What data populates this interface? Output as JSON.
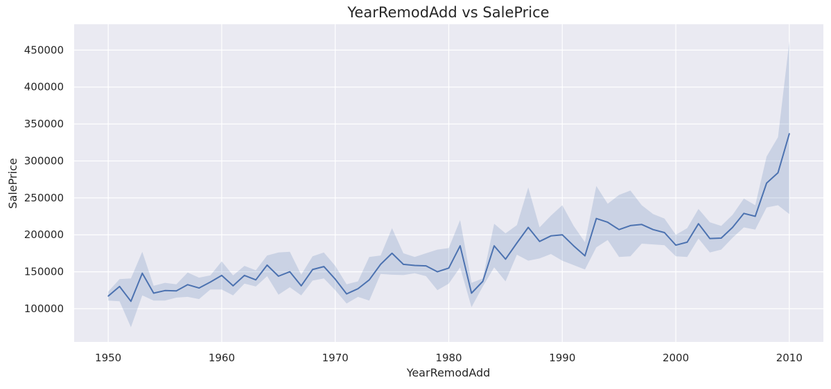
{
  "chart_data": {
    "type": "line",
    "title": "YearRemodAdd vs SalePrice",
    "xlabel": "YearRemodAdd",
    "ylabel": "SalePrice",
    "xlim": [
      1947,
      2013
    ],
    "ylim": [
      55000,
      485000
    ],
    "xticks": [
      1950,
      1960,
      1970,
      1980,
      1990,
      2000,
      2010
    ],
    "yticks": [
      100000,
      150000,
      200000,
      250000,
      300000,
      350000,
      400000,
      450000
    ],
    "grid": true,
    "confidence_band": true,
    "colors": {
      "background": "#eaeaf2",
      "grid": "#ffffff",
      "line": "#4c72b0",
      "band": "#4c72b0"
    },
    "series": [
      {
        "x": [
          1950,
          1951,
          1952,
          1953,
          1954,
          1955,
          1956,
          1957,
          1958,
          1959,
          1960,
          1961,
          1962,
          1963,
          1964,
          1965,
          1966,
          1967,
          1968,
          1969,
          1970,
          1971,
          1972,
          1973,
          1974,
          1975,
          1976,
          1977,
          1978,
          1979,
          1980,
          1981,
          1982,
          1983,
          1984,
          1985,
          1986,
          1987,
          1988,
          1989,
          1990,
          1991,
          1992,
          1993,
          1994,
          1995,
          1996,
          1997,
          1998,
          1999,
          2000,
          2001,
          2002,
          2003,
          2004,
          2005,
          2006,
          2007,
          2008,
          2009,
          2010
        ],
        "y": [
          117000,
          130000,
          110000,
          148000,
          121000,
          124500,
          124000,
          132500,
          128000,
          136000,
          145000,
          131000,
          145000,
          139000,
          159000,
          144000,
          150000,
          131000,
          153000,
          157000,
          140000,
          120000,
          127000,
          139000,
          160000,
          175000,
          160000,
          158500,
          158000,
          150000,
          155000,
          185000,
          121000,
          137000,
          185000,
          167000,
          189000,
          210000,
          191000,
          198500,
          200000,
          185000,
          171500,
          222000,
          217000,
          207000,
          212500,
          214000,
          207000,
          203000,
          186000,
          190000,
          215000,
          195000,
          195500,
          210000,
          229000,
          225000,
          270000,
          284000,
          337000
        ],
        "lower": [
          111000,
          110000,
          75000,
          118000,
          111000,
          111000,
          115000,
          116000,
          113000,
          126000,
          126000,
          118000,
          134000,
          130000,
          144000,
          119000,
          129000,
          118000,
          138000,
          141000,
          125000,
          107000,
          116000,
          111000,
          147000,
          146000,
          145500,
          148000,
          144000,
          125000,
          134000,
          156000,
          102000,
          130000,
          156000,
          137000,
          173000,
          165000,
          168000,
          174000,
          165000,
          159000,
          153000,
          183000,
          193000,
          170000,
          171000,
          188000,
          187000,
          186000,
          171000,
          170000,
          195000,
          176000,
          180000,
          196000,
          210000,
          207000,
          237000,
          240000,
          228000
        ],
        "upper": [
          123000,
          140000,
          141000,
          177000,
          131000,
          135000,
          133000,
          149000,
          142000,
          145000,
          164000,
          145000,
          158000,
          152000,
          172000,
          176000,
          177000,
          146000,
          171000,
          176000,
          158000,
          133000,
          137000,
          170000,
          172000,
          209000,
          175000,
          170000,
          175000,
          180000,
          182000,
          220000,
          135000,
          141000,
          215000,
          202000,
          213000,
          264000,
          210000,
          226000,
          240000,
          212000,
          190000,
          266000,
          242000,
          254000,
          260000,
          240000,
          228000,
          222000,
          200000,
          209000,
          235000,
          217000,
          212000,
          227000,
          249000,
          240000,
          306000,
          332000,
          462000
        ]
      }
    ]
  }
}
